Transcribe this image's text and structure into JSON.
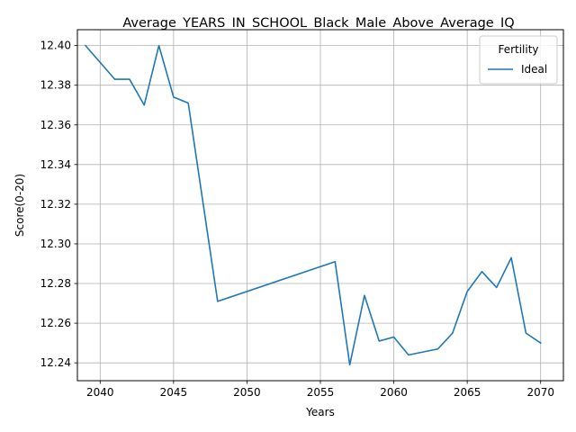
{
  "chart_data": {
    "type": "line",
    "title": "Average_YEARS_IN_SCHOOL_Black_Male_Above_Average_IQ",
    "xlabel": "Years",
    "ylabel": "Score(0-20)",
    "xlim": [
      2038.45,
      2071.55
    ],
    "ylim": [
      12.231,
      12.408
    ],
    "xticks": [
      2040,
      2045,
      2050,
      2055,
      2060,
      2065,
      2070
    ],
    "yticks": [
      12.24,
      12.26,
      12.28,
      12.3,
      12.32,
      12.34,
      12.36,
      12.38,
      12.4
    ],
    "ytick_labels": [
      "12.24",
      "12.26",
      "12.28",
      "12.30",
      "12.32",
      "12.34",
      "12.36",
      "12.38",
      "12.40"
    ],
    "grid": true,
    "legend": {
      "title": "Fertility",
      "placement": "top-right"
    },
    "series": [
      {
        "name": "Ideal",
        "color": "#1f77b4",
        "x": [
          2039,
          2041,
          2042,
          2043,
          2044,
          2045,
          2046,
          2048,
          2056,
          2057,
          2058,
          2059,
          2060,
          2061,
          2063,
          2064,
          2065,
          2066,
          2067,
          2068,
          2069,
          2070
        ],
        "y": [
          12.4,
          12.383,
          12.383,
          12.37,
          12.4,
          12.374,
          12.371,
          12.271,
          12.291,
          12.239,
          12.274,
          12.251,
          12.253,
          12.244,
          12.247,
          12.255,
          12.276,
          12.286,
          12.278,
          12.293,
          12.255,
          12.25
        ]
      }
    ]
  }
}
